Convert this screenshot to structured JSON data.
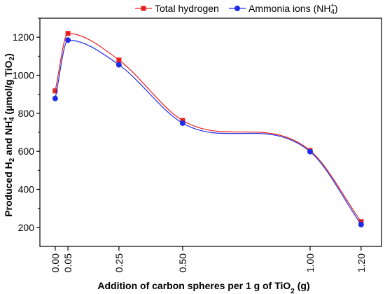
{
  "chart_data": {
    "type": "line",
    "title": "",
    "xlabel": {
      "prefix": "Addition of carbon spheres per 1 g of TiO",
      "sub": "2",
      "suffix": " (g)"
    },
    "ylabel": {
      "p1": "Produced H",
      "s1": "2",
      "p2": " and NH",
      "sup": "+",
      "s2": "4",
      "p3": " (µmol/g TiO",
      "s3": "2",
      "p4": ")"
    },
    "xlim": [
      -0.06,
      1.28
    ],
    "ylim": [
      100,
      1300
    ],
    "x_ticks": [
      0.0,
      0.05,
      0.25,
      0.5,
      1.0,
      1.2
    ],
    "x_tick_labels": [
      "0.00",
      "0.05",
      "0.25",
      "0.50",
      "1.00",
      "1.20"
    ],
    "y_ticks": [
      200,
      400,
      600,
      800,
      1000,
      1200
    ],
    "y_tick_labels": [
      "200",
      "400",
      "600",
      "800",
      "1000",
      "1200"
    ],
    "grid": false,
    "legend_position": "top",
    "series": [
      {
        "name": "Total hydrogen",
        "legend_parts": {
          "text": "Total hydrogen"
        },
        "color": "#e8201f",
        "marker": "square",
        "x": [
          0.0,
          0.05,
          0.25,
          0.5,
          1.0,
          1.2
        ],
        "values": [
          918,
          1220,
          1080,
          762,
          604,
          230
        ]
      },
      {
        "name": "Ammonia ions (NH4+)",
        "legend_parts": {
          "text": "Ammonia ions (NH",
          "sup": "+",
          "sub": "4",
          "close": ")"
        },
        "color": "#1f2de8",
        "marker": "circle",
        "x": [
          0.0,
          0.05,
          0.25,
          0.5,
          1.0,
          1.2
        ],
        "values": [
          878,
          1185,
          1055,
          748,
          598,
          215
        ]
      }
    ]
  }
}
